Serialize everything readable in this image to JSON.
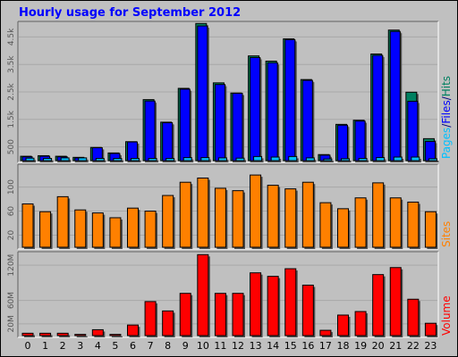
{
  "window": {
    "title": "Hourly usage for September 2012"
  },
  "colors": {
    "title": "#0000ff",
    "background": "#c0c0c0",
    "pages": "#00c0ff",
    "files": "#0000ff",
    "hits": "#008060",
    "sites": "#ff8000",
    "volume": "#ff0000"
  },
  "chart_data": [
    {
      "type": "bar",
      "title": "Hourly usage for September 2012",
      "categories": [
        "0",
        "1",
        "2",
        "3",
        "4",
        "5",
        "6",
        "7",
        "8",
        "9",
        "10",
        "11",
        "12",
        "13",
        "14",
        "15",
        "16",
        "17",
        "18",
        "19",
        "20",
        "21",
        "22",
        "23"
      ],
      "ylabel": [
        "Pages",
        "/",
        "Files",
        "/",
        "Hits"
      ],
      "ticks": [
        "500",
        "1.5k",
        "2.5k",
        "3.5k",
        "4.5k"
      ],
      "tick_values": [
        500,
        1500,
        2500,
        3500,
        4500
      ],
      "ylim": [
        0,
        5000
      ],
      "series": [
        {
          "name": "Hits",
          "values": [
            160,
            180,
            160,
            120,
            480,
            280,
            690,
            2220,
            1400,
            2630,
            4990,
            2830,
            2460,
            3810,
            3620,
            4430,
            2950,
            220,
            1320,
            1470,
            3880,
            4750,
            2490,
            800
          ]
        },
        {
          "name": "Files",
          "values": [
            140,
            160,
            140,
            100,
            470,
            260,
            680,
            2170,
            1380,
            2600,
            4900,
            2770,
            2450,
            3750,
            3560,
            4400,
            2920,
            200,
            1290,
            1440,
            3830,
            4700,
            2160,
            700
          ]
        },
        {
          "name": "Pages",
          "values": [
            90,
            80,
            100,
            100,
            80,
            80,
            80,
            80,
            80,
            110,
            110,
            100,
            90,
            150,
            130,
            150,
            100,
            60,
            70,
            80,
            110,
            130,
            130,
            70
          ]
        }
      ]
    },
    {
      "type": "bar",
      "categories": [
        "0",
        "1",
        "2",
        "3",
        "4",
        "5",
        "6",
        "7",
        "8",
        "9",
        "10",
        "11",
        "12",
        "13",
        "14",
        "15",
        "16",
        "17",
        "18",
        "19",
        "20",
        "21",
        "22",
        "23"
      ],
      "ylabel": "Sites",
      "ticks": [
        "20",
        "60",
        "100"
      ],
      "tick_values": [
        20,
        60,
        100
      ],
      "ylim": [
        0,
        135
      ],
      "series": [
        {
          "name": "Sites",
          "values": [
            72,
            59,
            84,
            62,
            57,
            49,
            65,
            60,
            86,
            108,
            115,
            98,
            94,
            120,
            103,
            97,
            108,
            74,
            64,
            82,
            107,
            82,
            75,
            59
          ]
        }
      ]
    },
    {
      "type": "bar",
      "categories": [
        "0",
        "1",
        "2",
        "3",
        "4",
        "5",
        "6",
        "7",
        "8",
        "9",
        "10",
        "11",
        "12",
        "13",
        "14",
        "15",
        "16",
        "17",
        "18",
        "19",
        "20",
        "21",
        "22",
        "23"
      ],
      "ylabel": "Volume",
      "ticks": [
        "20M",
        "60M",
        "120M"
      ],
      "tick_values": [
        20,
        60,
        120
      ],
      "ylim": [
        0,
        140
      ],
      "series": [
        {
          "name": "Volume",
          "values": [
            4,
            4,
            4,
            2,
            10,
            2,
            18,
            58,
            42,
            72,
            138,
            72,
            72,
            107,
            101,
            114,
            86,
            9,
            35,
            41,
            104,
            116,
            62,
            21
          ]
        }
      ]
    }
  ]
}
